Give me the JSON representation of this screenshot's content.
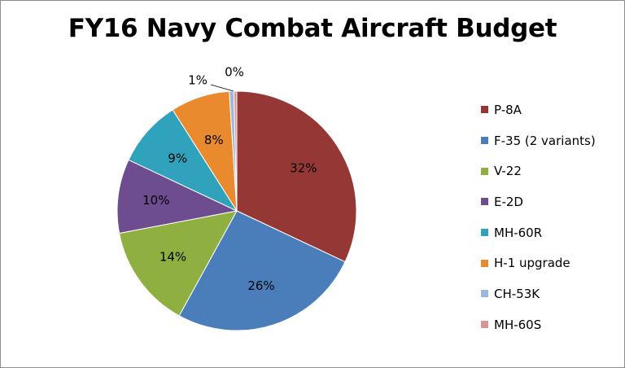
{
  "chart_data": {
    "type": "pie",
    "title": "FY16 Navy Combat Aircraft Budget",
    "legend_position": "right",
    "slices": [
      {
        "label": "P-8A",
        "value": 32,
        "display": "32%",
        "color": "#953735"
      },
      {
        "label": "F-35 (2 variants)",
        "value": 26,
        "display": "26%",
        "color": "#4a7ebb"
      },
      {
        "label": "V-22",
        "value": 14,
        "display": "14%",
        "color": "#8fb040"
      },
      {
        "label": "E-2D",
        "value": 10,
        "display": "10%",
        "color": "#6d4c8f"
      },
      {
        "label": "MH-60R",
        "value": 9,
        "display": "9%",
        "color": "#31a2bc"
      },
      {
        "label": "H-1 upgrade",
        "value": 8,
        "display": "8%",
        "color": "#ea8a2f"
      },
      {
        "label": "CH-53K",
        "value": 0.6,
        "display": "1%",
        "color": "#9bb7d9"
      },
      {
        "label": "MH-60S",
        "value": 0.4,
        "display": "0%",
        "color": "#d99594"
      }
    ]
  }
}
